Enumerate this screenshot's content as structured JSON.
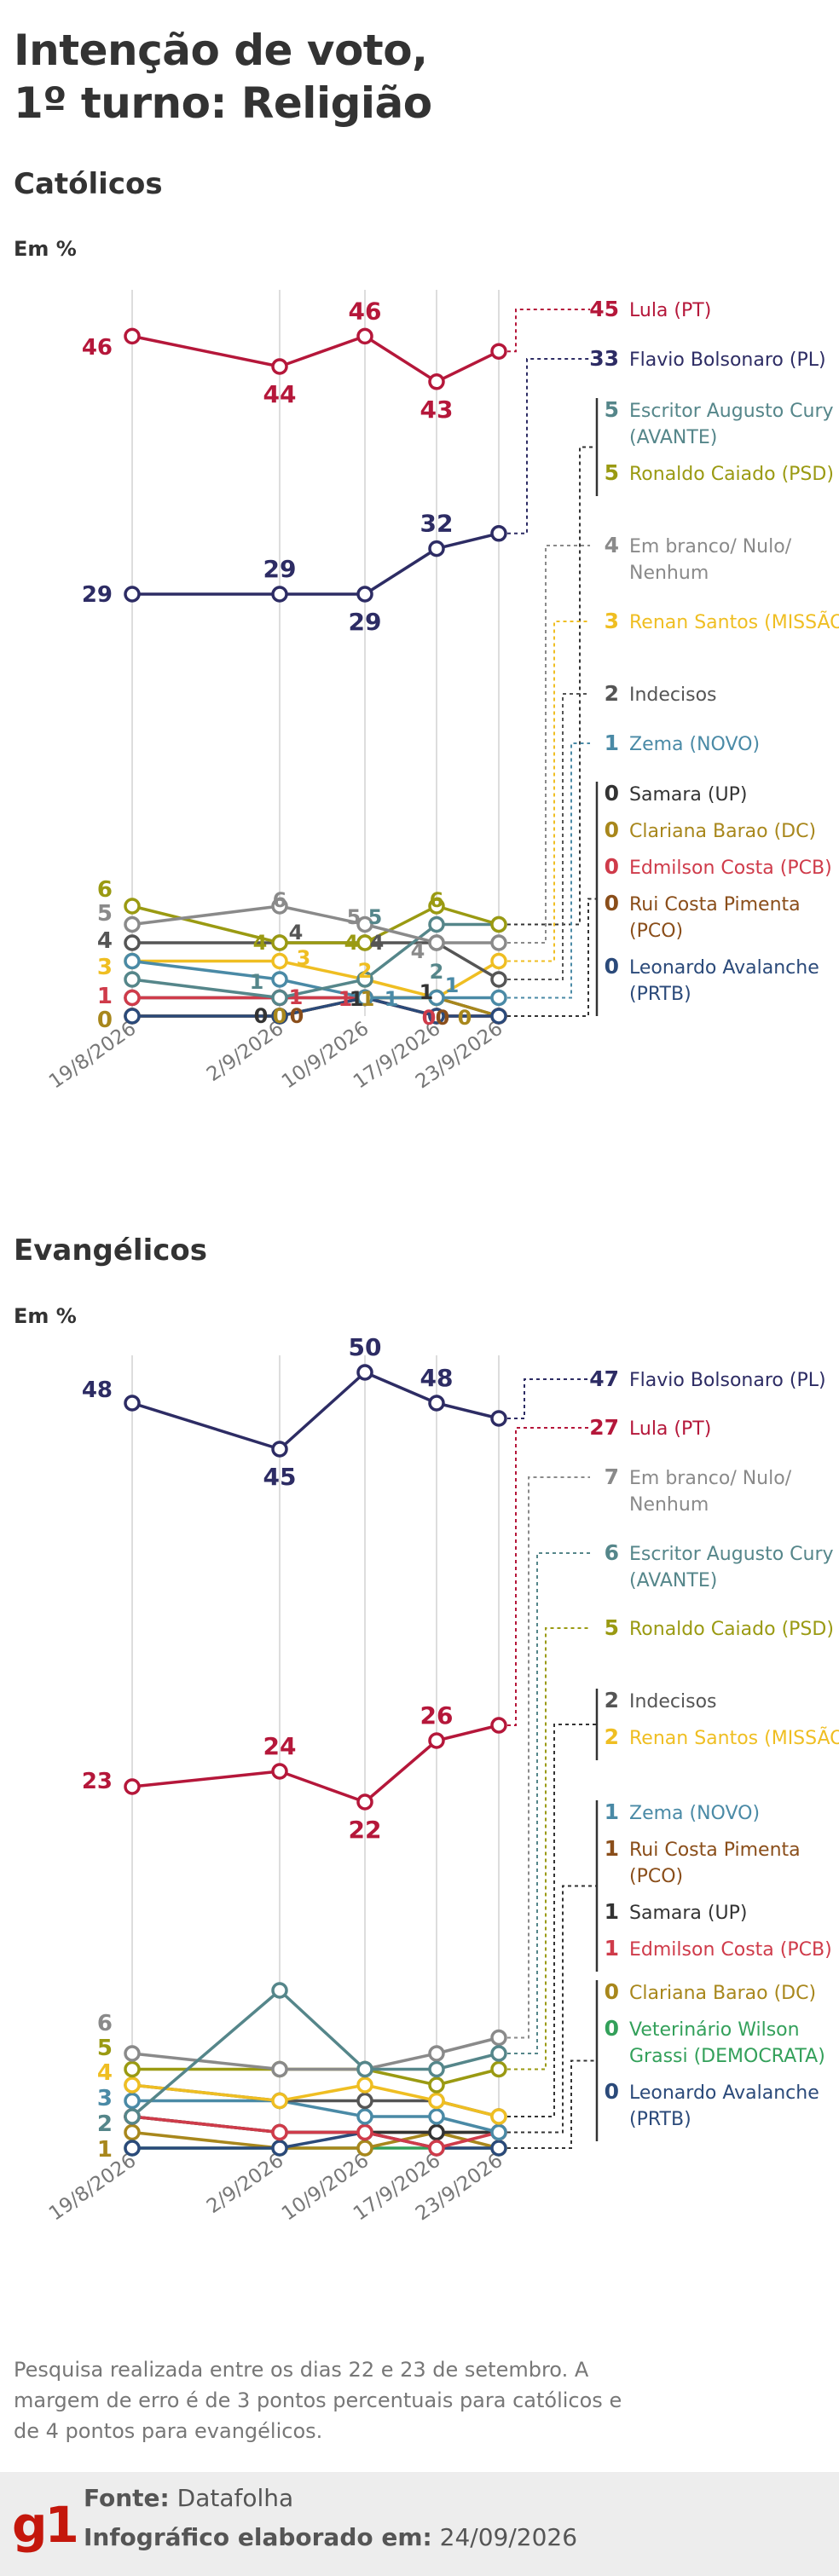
{
  "title": "Intenção de voto, 1º turno: Religião",
  "title_line1": "Intenção de voto,",
  "title_line2": "1º turno: Religião",
  "colors": {
    "lula": "#b5173a",
    "flavio": "#2d2c64",
    "cury": "#55868a",
    "caiado": "#9a9a12",
    "branco": "#8a8a8a",
    "renan": "#efbe22",
    "indecisos": "#555555",
    "zema": "#4a8aa6",
    "samara": "#333333",
    "clariana": "#a8871c",
    "edmilson": "#cf3b4a",
    "pimenta": "#8a4e1a",
    "avalanche": "#2b4a7a",
    "wilson": "#33a05a"
  },
  "footer": {
    "note": "Pesquisa realizada entre os dias 22 e 23 de setembro. A margem de erro é de 3 pontos percentuais para católicos e de 4 pontos para evangélicos.",
    "source_label": "Fonte:",
    "source_value": "Datafolha",
    "made_label": "Infográfico elaborado em:",
    "made_value": "24/09/2026",
    "logo": "g1"
  },
  "chart_data": [
    {
      "type": "line",
      "title": "Católicos",
      "ylabel": "Em %",
      "x": [
        "19/8/2026",
        "2/9/2026",
        "10/9/2026",
        "17/9/2026",
        "23/9/2026"
      ],
      "series": [
        {
          "name": "Lula (PT)",
          "key": "lula",
          "values": [
            46,
            44,
            46,
            43,
            45
          ],
          "labels": [
            "46",
            "44",
            "46",
            "43",
            "45"
          ],
          "legend": "45 Lula (PT)"
        },
        {
          "name": "Flavio Bolsonaro (PL)",
          "key": "flavio",
          "values": [
            29,
            29,
            29,
            32,
            33
          ],
          "labels": [
            "29",
            "29",
            "29",
            "32",
            "33"
          ],
          "legend": "33 Flavio Bolsonaro (PL)"
        },
        {
          "name": "Escritor Augusto Cury (AVANTE)",
          "key": "cury",
          "values": [
            2,
            1,
            2,
            5,
            5
          ]
        },
        {
          "name": "Ronaldo Caiado (PSD)",
          "key": "caiado",
          "values": [
            6,
            4,
            4,
            6,
            5
          ]
        },
        {
          "name": "Em branco/ Nulo/ Nenhum",
          "key": "branco",
          "values": [
            5,
            6,
            5,
            4,
            4
          ]
        },
        {
          "name": "Renan Santos (MISSÃO)",
          "key": "renan",
          "values": [
            3,
            3,
            2,
            1,
            3
          ]
        },
        {
          "name": "Indecisos",
          "key": "indecisos",
          "values": [
            4,
            4,
            4,
            4,
            2
          ]
        },
        {
          "name": "Zema (NOVO)",
          "key": "zema",
          "values": [
            3,
            2,
            1,
            1,
            1
          ]
        },
        {
          "name": "Samara (UP)",
          "key": "samara",
          "values": [
            1,
            1,
            1,
            1,
            0
          ]
        },
        {
          "name": "Clariana Barao (DC)",
          "key": "clariana",
          "values": [
            0,
            0,
            1,
            1,
            0
          ]
        },
        {
          "name": "Edmilson Costa (PCB)",
          "key": "edmilson",
          "values": [
            1,
            1,
            1,
            0,
            0
          ]
        },
        {
          "name": "Rui Costa Pimenta (PCO)",
          "key": "pimenta",
          "values": [
            0,
            0,
            1,
            0,
            0
          ]
        },
        {
          "name": "Leonardo Avalanche (PRTB)",
          "key": "avalanche",
          "values": [
            0,
            0,
            1,
            0,
            0
          ]
        }
      ],
      "left_labels": [
        {
          "text": "46",
          "key": "lula"
        },
        {
          "text": "29",
          "key": "flavio"
        },
        {
          "text": "6",
          "key": "caiado"
        },
        {
          "text": "5",
          "key": "branco"
        },
        {
          "text": "4",
          "key": "indecisos"
        },
        {
          "text": "3",
          "key": "renan"
        },
        {
          "text": "1",
          "key": "edmilson"
        },
        {
          "text": "0",
          "key": "clariana"
        }
      ],
      "small_labels": [
        {
          "text": "6",
          "key": "branco"
        },
        {
          "text": "4",
          "key": "indecisos"
        },
        {
          "text": "4",
          "key": "caiado"
        },
        {
          "text": "3",
          "key": "renan"
        },
        {
          "text": "1",
          "key": "cury"
        },
        {
          "text": "1",
          "key": "edmilson"
        },
        {
          "text": "0",
          "key": "samara"
        },
        {
          "text": "0",
          "key": "clariana"
        },
        {
          "text": "0",
          "key": "pimenta"
        },
        {
          "text": "5",
          "key": "branco"
        },
        {
          "text": "5",
          "key": "cury"
        },
        {
          "text": "4",
          "key": "caiado"
        },
        {
          "text": "4",
          "key": "indecisos"
        },
        {
          "text": "2",
          "key": "renan"
        },
        {
          "text": "1",
          "key": "edmilson"
        },
        {
          "text": "1",
          "key": "samara"
        },
        {
          "text": "1",
          "key": "clariana"
        },
        {
          "text": "1",
          "key": "zema"
        },
        {
          "text": "6",
          "key": "caiado"
        },
        {
          "text": "4",
          "key": "branco"
        },
        {
          "text": "2",
          "key": "cury"
        },
        {
          "text": "1",
          "key": "zema"
        },
        {
          "text": "1",
          "key": "samara"
        },
        {
          "text": "0",
          "key": "edmilson"
        },
        {
          "text": "0",
          "key": "pimenta"
        },
        {
          "text": "0",
          "key": "clariana"
        }
      ],
      "legend_groups": [
        {
          "items": [
            {
              "value": "45",
              "name": "Lula (PT)",
              "key": "lula"
            }
          ]
        },
        {
          "items": [
            {
              "value": "33",
              "name": "Flavio Bolsonaro (PL)",
              "key": "flavio"
            }
          ]
        },
        {
          "items": [
            {
              "value": "5",
              "name": "Escritor Augusto Cury (AVANTE)",
              "key": "cury"
            },
            {
              "value": "5",
              "name": "Ronaldo Caiado (PSD)",
              "key": "caiado"
            }
          ]
        },
        {
          "items": [
            {
              "value": "4",
              "name": "Em branco/ Nulo/ Nenhum",
              "key": "branco"
            }
          ]
        },
        {
          "items": [
            {
              "value": "3",
              "name": "Renan Santos (MISSÃO)",
              "key": "renan"
            }
          ]
        },
        {
          "items": [
            {
              "value": "2",
              "name": "Indecisos",
              "key": "indecisos"
            }
          ]
        },
        {
          "items": [
            {
              "value": "1",
              "name": "Zema (NOVO)",
              "key": "zema"
            }
          ]
        },
        {
          "items": [
            {
              "value": "0",
              "name": "Samara (UP)",
              "key": "samara"
            },
            {
              "value": "0",
              "name": "Clariana Barao (DC)",
              "key": "clariana"
            },
            {
              "value": "0",
              "name": "Edmilson Costa (PCB)",
              "key": "edmilson"
            },
            {
              "value": "0",
              "name": "Rui Costa Pimenta (PCO)",
              "key": "pimenta"
            },
            {
              "value": "0",
              "name": "Leonardo Avalanche (PRTB)",
              "key": "avalanche"
            }
          ]
        }
      ]
    },
    {
      "type": "line",
      "title": "Evangélicos",
      "ylabel": "Em %",
      "x": [
        "19/8/2026",
        "2/9/2026",
        "10/9/2026",
        "17/9/2026",
        "23/9/2026"
      ],
      "series": [
        {
          "name": "Flavio Bolsonaro (PL)",
          "key": "flavio",
          "values": [
            48,
            45,
            50,
            48,
            47
          ],
          "labels": [
            "48",
            "45",
            "50",
            "48",
            "47"
          ]
        },
        {
          "name": "Lula (PT)",
          "key": "lula",
          "values": [
            23,
            24,
            22,
            26,
            27
          ],
          "labels": [
            "23",
            "24",
            "22",
            "26",
            "27"
          ]
        },
        {
          "name": "Em branco/ Nulo/ Nenhum",
          "key": "branco",
          "values": [
            6,
            5,
            5,
            6,
            7
          ]
        },
        {
          "name": "Escritor Augusto Cury (AVANTE)",
          "key": "cury",
          "values": [
            2,
            10,
            5,
            5,
            6
          ]
        },
        {
          "name": "Ronaldo Caiado (PSD)",
          "key": "caiado",
          "values": [
            5,
            5,
            5,
            4,
            5
          ]
        },
        {
          "name": "Indecisos",
          "key": "indecisos",
          "values": [
            4,
            3,
            3,
            3,
            2
          ]
        },
        {
          "name": "Renan Santos (MISSÃO)",
          "key": "renan",
          "values": [
            4,
            3,
            4,
            3,
            2
          ]
        },
        {
          "name": "Zema (NOVO)",
          "key": "zema",
          "values": [
            3,
            3,
            2,
            2,
            1
          ]
        },
        {
          "name": "Rui Costa Pimenta (PCO)",
          "key": "pimenta",
          "values": [
            2,
            1,
            1,
            1,
            1
          ]
        },
        {
          "name": "Samara (UP)",
          "key": "samara",
          "values": [
            2,
            1,
            1,
            1,
            1
          ]
        },
        {
          "name": "Edmilson Costa (PCB)",
          "key": "edmilson",
          "values": [
            2,
            1,
            1,
            0,
            1
          ]
        },
        {
          "name": "Clariana Barao (DC)",
          "key": "clariana",
          "values": [
            1,
            0,
            0,
            1,
            0
          ]
        },
        {
          "name": "Veterinário Wilson Grassi (DEMOCRATA)",
          "key": "wilson",
          "values": [
            0,
            0,
            0,
            0,
            0
          ]
        },
        {
          "name": "Leonardo Avalanche (PRTB)",
          "key": "avalanche",
          "values": [
            0,
            0,
            1,
            0,
            0
          ]
        }
      ],
      "left_labels": [
        {
          "text": "48",
          "key": "flavio"
        },
        {
          "text": "23",
          "key": "lula"
        },
        {
          "text": "6",
          "key": "branco"
        },
        {
          "text": "5",
          "key": "caiado"
        },
        {
          "text": "4",
          "key": "renan"
        },
        {
          "text": "3",
          "key": "zema"
        },
        {
          "text": "2",
          "key": "cury"
        },
        {
          "text": "1",
          "key": "clariana"
        }
      ],
      "legend_groups": [
        {
          "items": [
            {
              "value": "47",
              "name": "Flavio Bolsonaro (PL)",
              "key": "flavio"
            }
          ]
        },
        {
          "items": [
            {
              "value": "27",
              "name": "Lula (PT)",
              "key": "lula"
            }
          ]
        },
        {
          "items": [
            {
              "value": "7",
              "name": "Em branco/ Nulo/ Nenhum",
              "key": "branco"
            }
          ]
        },
        {
          "items": [
            {
              "value": "6",
              "name": "Escritor Augusto Cury (AVANTE)",
              "key": "cury"
            }
          ]
        },
        {
          "items": [
            {
              "value": "5",
              "name": "Ronaldo Caiado (PSD)",
              "key": "caiado"
            }
          ]
        },
        {
          "items": [
            {
              "value": "2",
              "name": "Indecisos",
              "key": "indecisos"
            },
            {
              "value": "2",
              "name": "Renan Santos (MISSÃO)",
              "key": "renan"
            }
          ]
        },
        {
          "items": [
            {
              "value": "1",
              "name": "Zema (NOVO)",
              "key": "zema"
            },
            {
              "value": "1",
              "name": "Rui Costa Pimenta (PCO)",
              "key": "pimenta"
            },
            {
              "value": "1",
              "name": "Samara (UP)",
              "key": "samara"
            },
            {
              "value": "1",
              "name": "Edmilson Costa (PCB)",
              "key": "edmilson"
            }
          ]
        },
        {
          "items": [
            {
              "value": "0",
              "name": "Clariana Barao (DC)",
              "key": "clariana"
            },
            {
              "value": "0",
              "name": "Veterinário Wilson Grassi (DEMOCRATA)",
              "key": "wilson"
            },
            {
              "value": "0",
              "name": "Leonardo Avalanche (PRTB)",
              "key": "avalanche"
            }
          ]
        }
      ]
    }
  ]
}
